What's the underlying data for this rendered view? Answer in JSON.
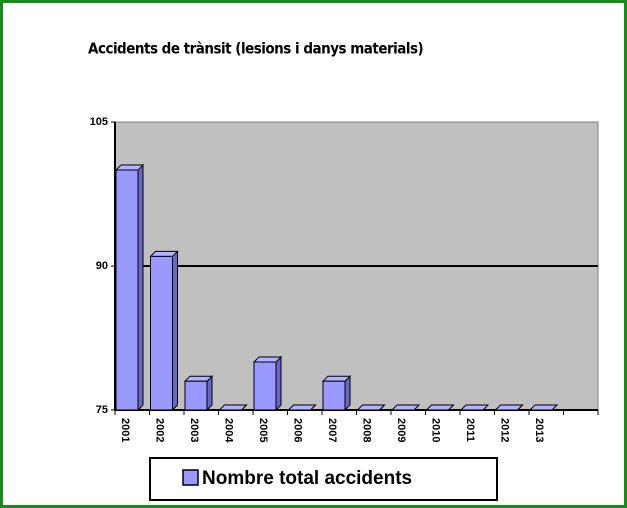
{
  "chart_data": {
    "type": "bar",
    "title": "Accidents de trànsit (lesions i danys materials)",
    "categories": [
      "2001",
      "2002",
      "2003",
      "2004",
      "2005",
      "2006",
      "2007",
      "2008",
      "2009",
      "2010",
      "2011",
      "2012",
      "2013",
      null
    ],
    "series": [
      {
        "name": "Nombre total accidents",
        "color": "#9999ff",
        "values": [
          100,
          91,
          78,
          75,
          80,
          75,
          78,
          75,
          75,
          75,
          75,
          75,
          75,
          null
        ]
      }
    ],
    "ylim": [
      75,
      105
    ],
    "yticks": [
      75,
      90,
      105
    ],
    "grid": true
  }
}
